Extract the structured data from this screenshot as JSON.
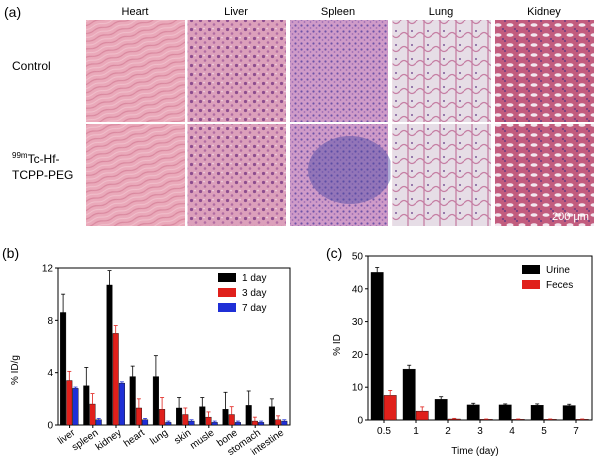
{
  "panel_a": {
    "label": "(a)",
    "columns": [
      "Heart",
      "Liver",
      "Spleen",
      "Lung",
      "Kidney"
    ],
    "rows": [
      {
        "label_lines": [
          "Control"
        ]
      },
      {
        "label_sup": "99m",
        "label_lines": [
          "Tc-Hf-",
          "TCPP-PEG"
        ]
      }
    ],
    "scale_bar": "200 μm",
    "tissue_colors": {
      "heart": "#e6a3b6",
      "liver": "#d98fb0",
      "spleen": "#c98cc0",
      "lung": "#ece3ea",
      "kidney": "#c8607e"
    }
  },
  "chart_data": [
    {
      "type": "bar",
      "panel": "(b)",
      "ylabel": "% ID/g",
      "ylim": [
        0,
        12
      ],
      "yticks": [
        "0",
        "4",
        "8",
        "12"
      ],
      "categories": [
        "liver",
        "spleen",
        "kidney",
        "heart",
        "lung",
        "skin",
        "musle",
        "bone",
        "stomach",
        "intestine"
      ],
      "series": [
        {
          "name": "1 day",
          "color": "#000000",
          "values": [
            8.6,
            3.0,
            10.7,
            3.7,
            3.7,
            1.3,
            1.4,
            1.2,
            1.5,
            1.4
          ],
          "errors": [
            1.4,
            1.4,
            1.1,
            0.8,
            1.6,
            0.8,
            0.7,
            1.3,
            1.1,
            0.6
          ]
        },
        {
          "name": "3 day",
          "color": "#e0201b",
          "values": [
            3.4,
            1.6,
            7.0,
            1.3,
            1.2,
            0.8,
            0.6,
            0.8,
            0.3,
            0.4
          ],
          "errors": [
            0.7,
            0.8,
            0.6,
            0.7,
            0.9,
            0.5,
            0.4,
            0.6,
            0.3,
            0.3
          ]
        },
        {
          "name": "7 day",
          "color": "#1f2fd6",
          "values": [
            2.8,
            0.4,
            3.2,
            0.4,
            0.2,
            0.3,
            0.2,
            0.2,
            0.2,
            0.3
          ],
          "errors": [
            0.1,
            0.1,
            0.1,
            0.1,
            0.1,
            0.1,
            0.1,
            0.1,
            0.1,
            0.1
          ]
        }
      ],
      "legend_position": "top-right"
    },
    {
      "type": "bar",
      "panel": "(c)",
      "xlabel": "Time (day)",
      "ylabel": "% ID",
      "ylim": [
        0,
        50
      ],
      "yticks": [
        "0",
        "10",
        "20",
        "30",
        "40",
        "50"
      ],
      "categories": [
        "0.5",
        "1",
        "2",
        "3",
        "4",
        "5",
        "7"
      ],
      "series": [
        {
          "name": "Urine",
          "color": "#000000",
          "values": [
            45,
            15.5,
            6.3,
            4.6,
            4.6,
            4.5,
            4.4
          ],
          "errors": [
            1.5,
            1.2,
            0.8,
            0.5,
            0.3,
            0.4,
            0.4
          ]
        },
        {
          "name": "Feces",
          "color": "#e0201b",
          "values": [
            7.5,
            2.7,
            0.3,
            0.2,
            0.2,
            0.2,
            0.2
          ],
          "errors": [
            1.5,
            1.3,
            0.2,
            0.1,
            0.1,
            0.1,
            0.1
          ]
        }
      ],
      "legend_position": "top-right"
    }
  ]
}
